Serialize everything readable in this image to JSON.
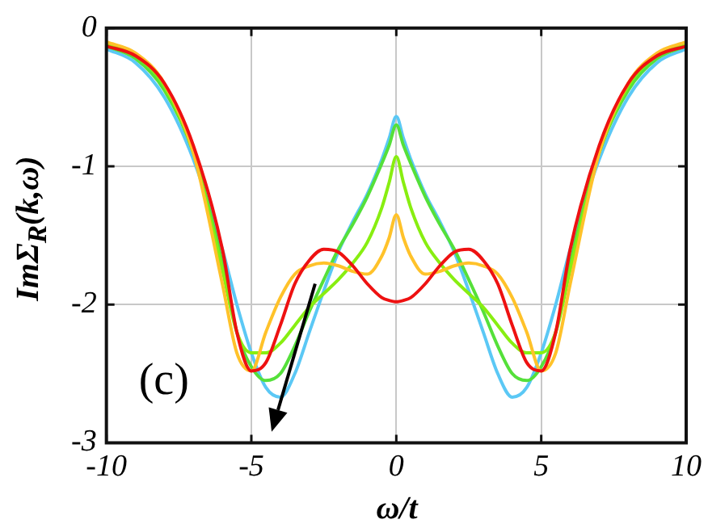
{
  "chart_data": {
    "type": "line",
    "xlabel": "ω/t",
    "ylabel": "ImΣ$_{R}$(k,ω)",
    "annotations": [
      "(c)"
    ],
    "xlim": [
      -10,
      10
    ],
    "xticks": [
      -10,
      -5,
      0,
      5,
      10
    ],
    "ylim": [
      -3,
      0
    ],
    "yticks": [
      -3,
      -2,
      -1,
      0
    ],
    "grid": true,
    "legend": false,
    "marker": "none",
    "line_style": "solid",
    "x": [
      -10,
      -9,
      -8,
      -7,
      -6,
      -5.5,
      -5,
      -4.5,
      -4,
      -3.5,
      -3,
      -2.5,
      -2,
      -1.5,
      -1,
      -0.5,
      -0.25,
      0,
      0.25,
      0.5,
      1,
      1.5,
      2,
      2.5,
      3,
      3.5,
      4,
      4.5,
      5,
      5.5,
      6,
      7,
      8,
      9,
      10
    ],
    "series": [
      {
        "color": "#5bc8f5",
        "values": [
          -0.15,
          -0.25,
          -0.5,
          -0.95,
          -1.6,
          -2.0,
          -2.35,
          -2.6,
          -2.67,
          -2.5,
          -2.2,
          -1.9,
          -1.62,
          -1.4,
          -1.2,
          -0.95,
          -0.8,
          -0.64,
          -0.8,
          -0.95,
          -1.2,
          -1.4,
          -1.62,
          -1.9,
          -2.2,
          -2.5,
          -2.67,
          -2.6,
          -2.35,
          -2.0,
          -1.6,
          -0.95,
          -0.5,
          -0.25,
          -0.15
        ]
      },
      {
        "color": "#55e03a",
        "values": [
          -0.13,
          -0.22,
          -0.45,
          -0.9,
          -1.7,
          -2.2,
          -2.45,
          -2.55,
          -2.5,
          -2.3,
          -2.05,
          -1.82,
          -1.6,
          -1.42,
          -1.22,
          -0.98,
          -0.85,
          -0.7,
          -0.85,
          -0.98,
          -1.22,
          -1.42,
          -1.6,
          -1.82,
          -2.05,
          -2.3,
          -2.5,
          -2.55,
          -2.45,
          -2.2,
          -1.7,
          -0.9,
          -0.45,
          -0.22,
          -0.13
        ]
      },
      {
        "color": "#88ee11",
        "values": [
          -0.12,
          -0.2,
          -0.42,
          -0.9,
          -1.75,
          -2.2,
          -2.35,
          -2.35,
          -2.28,
          -2.15,
          -2.02,
          -1.92,
          -1.82,
          -1.7,
          -1.55,
          -1.3,
          -1.12,
          -0.93,
          -1.12,
          -1.3,
          -1.55,
          -1.7,
          -1.82,
          -1.92,
          -2.02,
          -2.15,
          -2.28,
          -2.35,
          -2.35,
          -2.2,
          -1.75,
          -0.9,
          -0.42,
          -0.2,
          -0.12
        ]
      },
      {
        "color": "#ffc22a",
        "values": [
          -0.1,
          -0.18,
          -0.4,
          -0.9,
          -1.85,
          -2.35,
          -2.48,
          -2.2,
          -1.95,
          -1.78,
          -1.72,
          -1.7,
          -1.72,
          -1.76,
          -1.78,
          -1.65,
          -1.52,
          -1.35,
          -1.52,
          -1.65,
          -1.78,
          -1.76,
          -1.72,
          -1.7,
          -1.72,
          -1.78,
          -1.95,
          -2.2,
          -2.48,
          -2.35,
          -1.85,
          -0.9,
          -0.4,
          -0.18,
          -0.1
        ]
      },
      {
        "color": "#ee1111",
        "values": [
          -0.13,
          -0.2,
          -0.4,
          -0.85,
          -1.6,
          -2.2,
          -2.48,
          -2.42,
          -2.15,
          -1.85,
          -1.68,
          -1.6,
          -1.62,
          -1.72,
          -1.85,
          -1.95,
          -1.97,
          -1.98,
          -1.97,
          -1.95,
          -1.85,
          -1.72,
          -1.62,
          -1.6,
          -1.68,
          -1.85,
          -2.15,
          -2.42,
          -2.48,
          -2.2,
          -1.6,
          -0.85,
          -0.4,
          -0.2,
          -0.13
        ]
      }
    ]
  }
}
